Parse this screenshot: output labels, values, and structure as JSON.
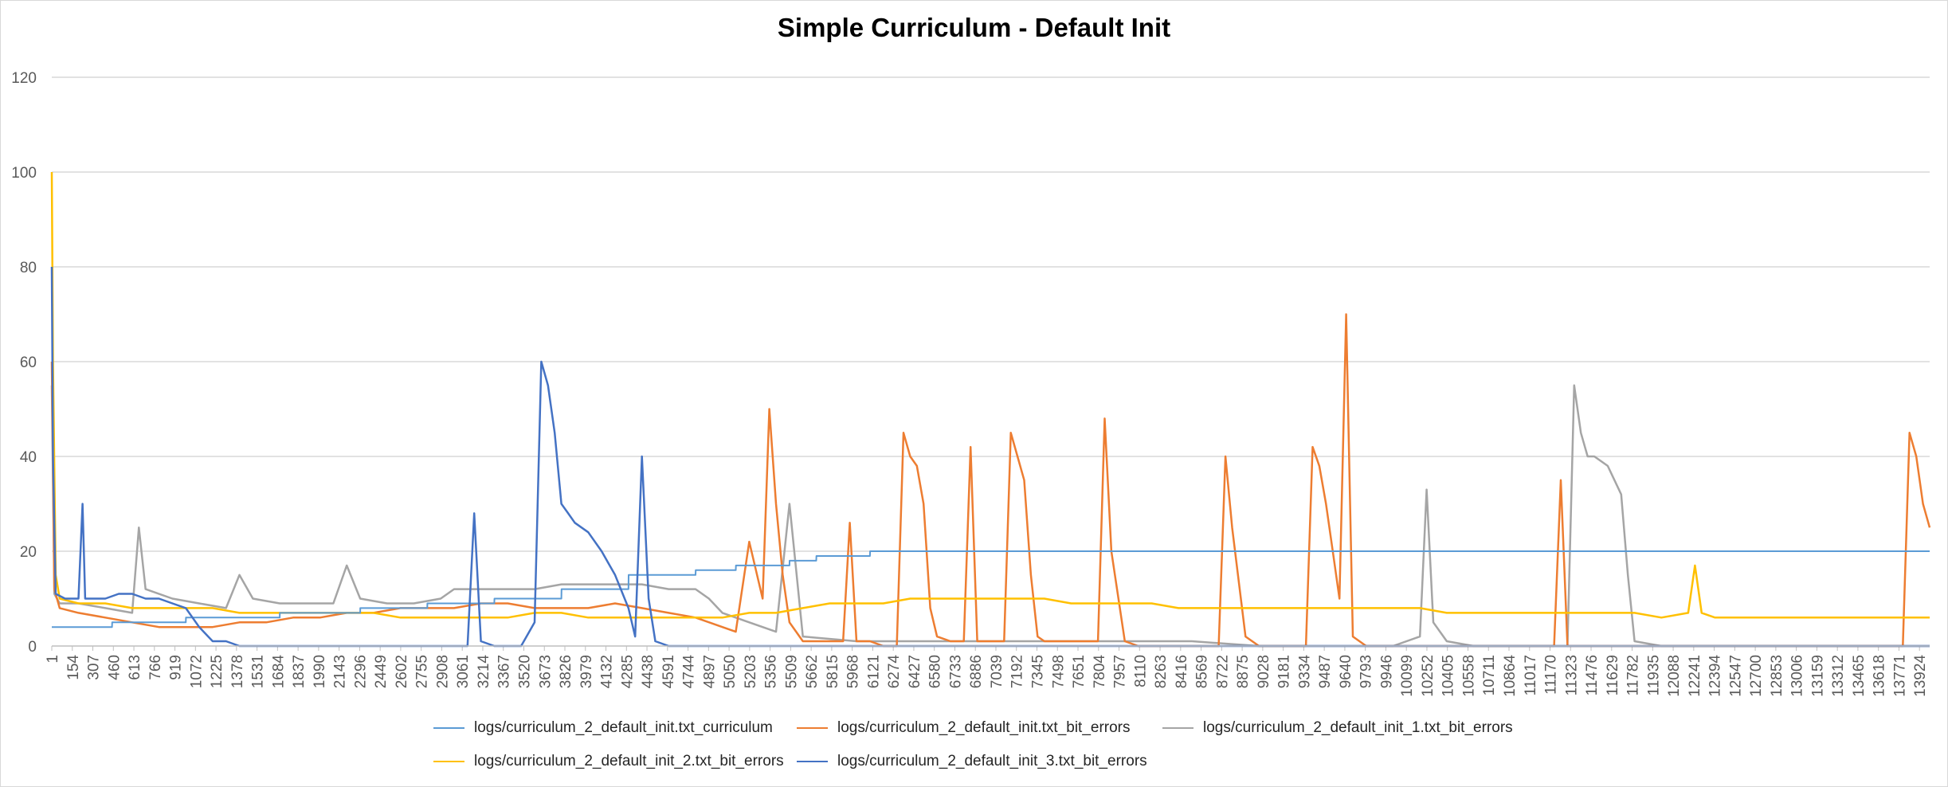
{
  "chart_data": {
    "type": "line",
    "title": "Simple Curriculum - Default Init",
    "xlabel": "",
    "ylabel": "",
    "ylim": [
      0,
      120
    ],
    "yticks": [
      0,
      20,
      40,
      60,
      80,
      100,
      120
    ],
    "xlim": [
      1,
      14000
    ],
    "xticks": [
      1,
      154,
      307,
      460,
      613,
      766,
      919,
      1072,
      1225,
      1378,
      1531,
      1684,
      1837,
      1990,
      2143,
      2296,
      2449,
      2602,
      2755,
      2908,
      3061,
      3214,
      3367,
      3520,
      3673,
      3826,
      3979,
      4132,
      4285,
      4438,
      4591,
      4744,
      4897,
      5050,
      5203,
      5356,
      5509,
      5662,
      5815,
      5968,
      6121,
      6274,
      6427,
      6580,
      6733,
      6886,
      7039,
      7192,
      7345,
      7498,
      7651,
      7804,
      7957,
      8110,
      8263,
      8416,
      8569,
      8722,
      8875,
      9028,
      9181,
      9334,
      9487,
      9640,
      9793,
      9946,
      10099,
      10252,
      10405,
      10558,
      10711,
      10864,
      11017,
      11170,
      11323,
      11476,
      11629,
      11782,
      11935,
      12088,
      12241,
      12394,
      12547,
      12700,
      12853,
      13006,
      13159,
      13312,
      13465,
      13618,
      13771,
      13924
    ],
    "grid": true,
    "legend_position": "bottom",
    "series": [
      {
        "name": "logs/curriculum_2_default_init.txt_curriculum",
        "color": "#5b9bd5",
        "x": [
          1,
          450,
          451,
          1000,
          1001,
          1700,
          1701,
          2300,
          2301,
          2800,
          2801,
          3300,
          3301,
          3800,
          3801,
          4300,
          4301,
          4800,
          4801,
          5100,
          5101,
          5500,
          5501,
          5700,
          5701,
          6100,
          6101,
          6400,
          6401,
          14000
        ],
        "y": [
          4,
          4,
          5,
          5,
          6,
          6,
          7,
          7,
          8,
          8,
          9,
          9,
          10,
          10,
          12,
          12,
          15,
          15,
          16,
          16,
          17,
          17,
          18,
          18,
          19,
          19,
          20,
          20,
          20,
          20
        ]
      },
      {
        "name": "logs/curriculum_2_default_init.txt_bit_errors",
        "color": "#ed7d31",
        "x": [
          1,
          20,
          60,
          200,
          400,
          600,
          800,
          1000,
          1200,
          1400,
          1600,
          1800,
          2000,
          2200,
          2400,
          2600,
          2800,
          3000,
          3200,
          3400,
          3600,
          3800,
          4000,
          4200,
          4400,
          4600,
          4800,
          5000,
          5100,
          5200,
          5300,
          5350,
          5400,
          5450,
          5500,
          5550,
          5600,
          5700,
          5800,
          5900,
          5950,
          6000,
          6100,
          6200,
          6300,
          6350,
          6400,
          6450,
          6500,
          6550,
          6600,
          6700,
          6800,
          6850,
          6900,
          7000,
          7100,
          7150,
          7200,
          7250,
          7300,
          7350,
          7400,
          7500,
          7600,
          7700,
          7800,
          7850,
          7900,
          8000,
          8100,
          8300,
          8500,
          8700,
          8750,
          8800,
          8900,
          9000,
          9200,
          9350,
          9400,
          9450,
          9500,
          9550,
          9600,
          9650,
          9700,
          9800,
          10000,
          10200,
          10400,
          10600,
          10800,
          11000,
          11200,
          11250,
          11300,
          11500,
          12000,
          12500,
          13000,
          13500,
          13800,
          13850,
          13900,
          13950,
          14000
        ],
        "y": [
          60,
          12,
          8,
          7,
          6,
          5,
          4,
          4,
          4,
          5,
          5,
          6,
          6,
          7,
          7,
          8,
          8,
          8,
          9,
          9,
          8,
          8,
          8,
          9,
          8,
          7,
          6,
          4,
          3,
          22,
          10,
          50,
          30,
          15,
          5,
          3,
          1,
          1,
          1,
          1,
          26,
          1,
          1,
          0,
          0,
          45,
          40,
          38,
          30,
          8,
          2,
          1,
          1,
          42,
          1,
          1,
          1,
          45,
          40,
          35,
          15,
          2,
          1,
          1,
          1,
          1,
          1,
          48,
          20,
          1,
          0,
          0,
          0,
          0,
          40,
          25,
          2,
          0,
          0,
          0,
          42,
          38,
          30,
          20,
          10,
          70,
          2,
          0,
          0,
          0,
          0,
          0,
          0,
          0,
          0,
          35,
          0,
          0,
          0,
          0,
          0,
          0,
          0,
          45,
          40,
          30,
          25
        ]
      },
      {
        "name": "logs/curriculum_2_default_init_1.txt_bit_errors",
        "color": "#a5a5a5",
        "x": [
          1,
          20,
          60,
          200,
          400,
          600,
          650,
          700,
          900,
          1100,
          1300,
          1400,
          1500,
          1700,
          1900,
          2100,
          2200,
          2300,
          2500,
          2700,
          2900,
          3000,
          3200,
          3400,
          3600,
          3800,
          4000,
          4200,
          4400,
          4600,
          4800,
          4900,
          5000,
          5200,
          5400,
          5500,
          5600,
          6000,
          6500,
          7000,
          7500,
          8000,
          8500,
          9000,
          9500,
          10000,
          10200,
          10250,
          10300,
          10400,
          10600,
          11000,
          11300,
          11350,
          11400,
          11450,
          11500,
          11600,
          11700,
          11750,
          11800,
          12000,
          12500,
          13000,
          13500,
          14000
        ],
        "y": [
          55,
          11,
          9,
          9,
          8,
          7,
          25,
          12,
          10,
          9,
          8,
          15,
          10,
          9,
          9,
          9,
          17,
          10,
          9,
          9,
          10,
          12,
          12,
          12,
          12,
          13,
          13,
          13,
          13,
          12,
          12,
          10,
          7,
          5,
          3,
          30,
          2,
          1,
          1,
          1,
          1,
          1,
          1,
          0,
          0,
          0,
          2,
          33,
          5,
          1,
          0,
          0,
          0,
          55,
          45,
          40,
          40,
          38,
          32,
          15,
          1,
          0,
          0,
          0,
          0,
          0
        ]
      },
      {
        "name": "logs/curriculum_2_default_init_2.txt_bit_errors",
        "color": "#ffc000",
        "x": [
          1,
          10,
          30,
          60,
          200,
          400,
          600,
          800,
          1000,
          1200,
          1400,
          1600,
          1800,
          2000,
          2200,
          2400,
          2600,
          2800,
          3000,
          3200,
          3400,
          3600,
          3800,
          4000,
          4200,
          4400,
          4600,
          4800,
          5000,
          5200,
          5400,
          5600,
          5800,
          6000,
          6200,
          6400,
          6600,
          6800,
          7000,
          7200,
          7400,
          7600,
          7800,
          8000,
          8200,
          8400,
          8600,
          8800,
          9000,
          9200,
          9400,
          9600,
          9800,
          10000,
          10200,
          10400,
          10600,
          10800,
          11000,
          11200,
          11400,
          11600,
          11800,
          12000,
          12200,
          12250,
          12300,
          12400,
          12600,
          12800,
          13000,
          13200,
          13400,
          13600,
          13800,
          14000
        ],
        "y": [
          100,
          60,
          15,
          10,
          9,
          9,
          8,
          8,
          8,
          8,
          7,
          7,
          7,
          7,
          7,
          7,
          6,
          6,
          6,
          6,
          6,
          7,
          7,
          6,
          6,
          6,
          6,
          6,
          6,
          7,
          7,
          8,
          9,
          9,
          9,
          10,
          10,
          10,
          10,
          10,
          10,
          9,
          9,
          9,
          9,
          8,
          8,
          8,
          8,
          8,
          8,
          8,
          8,
          8,
          8,
          7,
          7,
          7,
          7,
          7,
          7,
          7,
          7,
          6,
          7,
          17,
          7,
          6,
          6,
          6,
          6,
          6,
          6,
          6,
          6,
          6
        ]
      },
      {
        "name": "logs/curriculum_2_default_init_3.txt_bit_errors",
        "color": "#4472c4",
        "x": [
          1,
          10,
          30,
          100,
          200,
          230,
          250,
          300,
          400,
          500,
          600,
          700,
          800,
          900,
          1000,
          1100,
          1200,
          1300,
          1400,
          1500,
          1700,
          1900,
          2100,
          2300,
          2500,
          2700,
          2900,
          3100,
          3150,
          3200,
          3300,
          3500,
          3600,
          3650,
          3700,
          3750,
          3800,
          3850,
          3900,
          4000,
          4100,
          4200,
          4300,
          4350,
          4400,
          4450,
          4500,
          4600,
          4800,
          5000,
          6000,
          7000,
          8000,
          9000,
          10000,
          11000,
          12000,
          13000,
          14000
        ],
        "y": [
          80,
          40,
          11,
          10,
          10,
          30,
          10,
          10,
          10,
          11,
          11,
          10,
          10,
          9,
          8,
          4,
          1,
          1,
          0,
          0,
          0,
          0,
          0,
          0,
          0,
          0,
          0,
          0,
          28,
          1,
          0,
          0,
          5,
          60,
          55,
          45,
          30,
          28,
          26,
          24,
          20,
          15,
          8,
          2,
          40,
          10,
          1,
          0,
          0,
          0,
          0,
          0,
          0,
          0,
          0,
          0,
          0,
          0,
          0
        ]
      }
    ]
  }
}
